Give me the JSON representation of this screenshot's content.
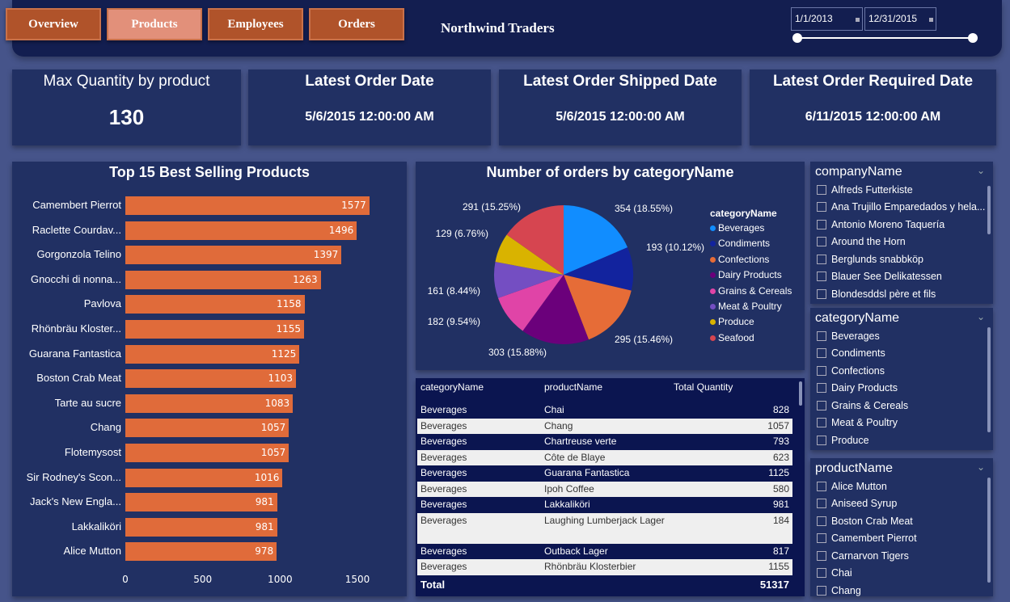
{
  "header": {
    "title": "Northwind Traders",
    "nav": [
      "Overview",
      "Products",
      "Employees",
      "Orders"
    ],
    "active_nav": "Products",
    "date_start": "1/1/2013",
    "date_end": "12/31/2015"
  },
  "cards": [
    {
      "title": "Max Quantity by product",
      "value": "130"
    },
    {
      "title": "Latest Order Date",
      "value": "5/6/2015 12:00:00 AM"
    },
    {
      "title": "Latest Order Shipped Date",
      "value": "5/6/2015 12:00:00 AM"
    },
    {
      "title": "Latest Order Required Date",
      "value": "6/11/2015 12:00:00 AM"
    }
  ],
  "chart_data": [
    {
      "type": "bar",
      "orientation": "horizontal",
      "title": "Top 15 Best Selling Products",
      "categories": [
        "Camembert Pierrot",
        "Raclette Courdav...",
        "Gorgonzola Telino",
        "Gnocchi di nonna...",
        "Pavlova",
        "Rhönbräu Kloster...",
        "Guarana Fantastica",
        "Boston Crab Meat",
        "Tarte au sucre",
        "Chang",
        "Flotemysost",
        "Sir Rodney's Scon...",
        "Jack's New Engla...",
        "Lakkaliköri",
        "Alice Mutton"
      ],
      "values": [
        1577,
        1496,
        1397,
        1263,
        1158,
        1155,
        1125,
        1103,
        1083,
        1057,
        1057,
        1016,
        981,
        981,
        978
      ],
      "xticks": [
        "0",
        "500",
        "1000",
        "1500"
      ],
      "xlim": [
        0,
        1600
      ],
      "color": "#e06b3a"
    },
    {
      "type": "pie",
      "title": "Number of orders by categoryName",
      "legend_title": "categoryName",
      "legend_position": "right",
      "slices": [
        {
          "name": "Beverages",
          "value": 354,
          "label": "354 (18.55%)",
          "color": "#118dff"
        },
        {
          "name": "Condiments",
          "value": 193,
          "label": "193 (10.12%)",
          "color": "#12239e"
        },
        {
          "name": "Confections",
          "value": 295,
          "label": "295 (15.46%)",
          "color": "#e66c37"
        },
        {
          "name": "Dairy Products",
          "value": 303,
          "label": "303 (15.88%)",
          "color": "#6b007b"
        },
        {
          "name": "Grains & Cereals",
          "value": 182,
          "label": "182 (9.54%)",
          "color": "#e044a7"
        },
        {
          "name": "Meat & Poultry",
          "value": 161,
          "label": "161 (8.44%)",
          "color": "#744ec2"
        },
        {
          "name": "Produce",
          "value": 129,
          "label": "129 (6.76%)",
          "color": "#d9b300"
        },
        {
          "name": "Seafood",
          "value": 291,
          "label": "291 (15.25%)",
          "color": "#d64550"
        }
      ]
    }
  ],
  "table": {
    "headers": [
      "categoryName",
      "productName",
      "Total Quantity"
    ],
    "rows": [
      [
        "Beverages",
        "Chai",
        "828"
      ],
      [
        "Beverages",
        "Chang",
        "1057"
      ],
      [
        "Beverages",
        "Chartreuse verte",
        "793"
      ],
      [
        "Beverages",
        "Côte de Blaye",
        "623"
      ],
      [
        "Beverages",
        "Guarana Fantastica",
        "1125"
      ],
      [
        "Beverages",
        "Ipoh Coffee",
        "580"
      ],
      [
        "Beverages",
        "Lakkaliköri",
        "981"
      ],
      [
        "Beverages",
        "Laughing Lumberjack Lager",
        "184"
      ],
      [
        "Beverages",
        "Outback Lager",
        "817"
      ],
      [
        "Beverages",
        "Rhönbräu Klosterbier",
        "1155"
      ]
    ],
    "total_label": "Total",
    "total_value": "51317"
  },
  "slicers": [
    {
      "title": "companyName",
      "items": [
        "Alfreds Futterkiste",
        "Ana Trujillo Emparedados y hela...",
        "Antonio Moreno Taquería",
        "Around the Horn",
        "Berglunds snabbköp",
        "Blauer See Delikatessen",
        "Blondesddsl père et fils"
      ]
    },
    {
      "title": "categoryName",
      "items": [
        "Beverages",
        "Condiments",
        "Confections",
        "Dairy Products",
        "Grains & Cereals",
        "Meat & Poultry",
        "Produce"
      ]
    },
    {
      "title": "productName",
      "items": [
        "Alice Mutton",
        "Aniseed Syrup",
        "Boston Crab Meat",
        "Camembert Pierrot",
        "Carnarvon Tigers",
        "Chai",
        "Chang"
      ]
    }
  ]
}
